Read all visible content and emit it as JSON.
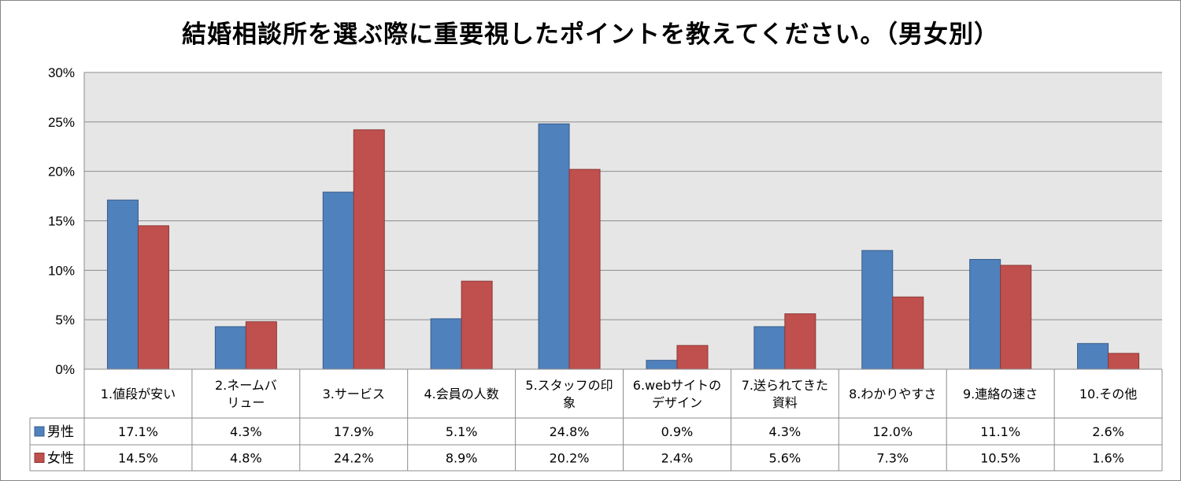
{
  "chart_data": {
    "type": "bar",
    "title": "結婚相談所を選ぶ際に重要視したポイントを教えてください。（男女別）",
    "categories": [
      [
        "1.値段が安い"
      ],
      [
        "2.ネームバ",
        "リュー"
      ],
      [
        "3.サービス"
      ],
      [
        "4.会員の人数"
      ],
      [
        "5.スタッフの印",
        "象"
      ],
      [
        "6.webサイトの",
        "デザイン"
      ],
      [
        "7.送られてきた",
        "資料"
      ],
      [
        "8.わかりやすさ"
      ],
      [
        "9.連絡の速さ"
      ],
      [
        "10.その他"
      ]
    ],
    "series": [
      {
        "name": "男性",
        "color": "#4F81BD",
        "values": [
          17.1,
          4.3,
          17.9,
          5.1,
          24.8,
          0.9,
          4.3,
          12.0,
          11.1,
          2.6
        ],
        "labels": [
          "17.1%",
          "4.3%",
          "17.9%",
          "5.1%",
          "24.8%",
          "0.9%",
          "4.3%",
          "12.0%",
          "11.1%",
          "2.6%"
        ]
      },
      {
        "name": "女性",
        "color": "#C0504D",
        "values": [
          14.5,
          4.8,
          24.2,
          8.9,
          20.2,
          2.4,
          5.6,
          7.3,
          10.5,
          1.6
        ],
        "labels": [
          "14.5%",
          "4.8%",
          "24.2%",
          "8.9%",
          "20.2%",
          "2.4%",
          "5.6%",
          "7.3%",
          "10.5%",
          "1.6%"
        ]
      }
    ],
    "ylim": [
      0,
      30
    ],
    "yticks": [
      "0%",
      "5%",
      "10%",
      "15%",
      "20%",
      "25%",
      "30%"
    ],
    "grid": true,
    "legend": "data-table"
  }
}
